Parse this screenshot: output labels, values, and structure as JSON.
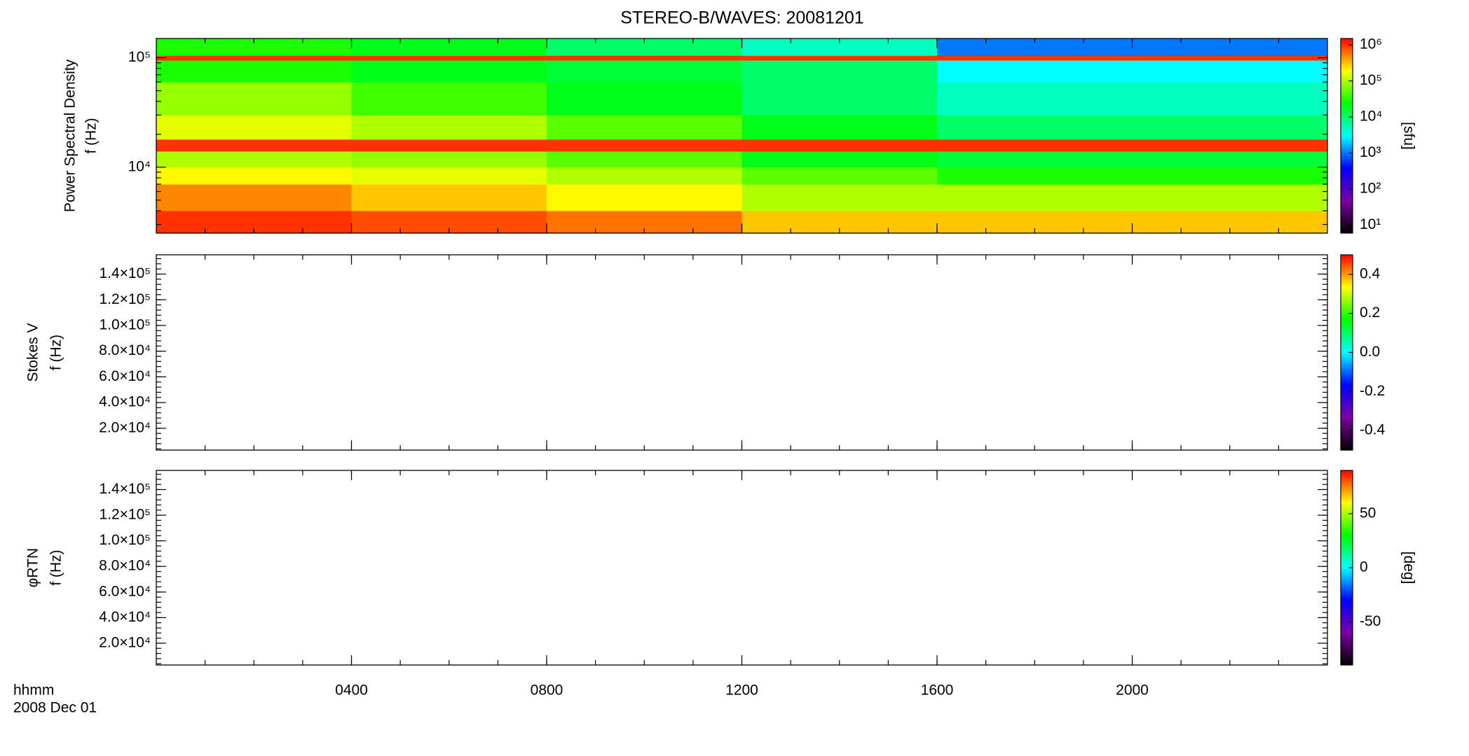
{
  "chart_data": [
    {
      "type": "heatmap",
      "title": "STEREO-B/WAVES: 20081201",
      "ylabel": [
        "Power Spectral Density",
        "f (Hz)"
      ],
      "ylog": true,
      "ylim": [
        2500,
        150000
      ],
      "yticks": [
        {
          "value": 10000,
          "label": "10⁴"
        },
        {
          "value": 100000,
          "label": "10⁵"
        }
      ],
      "x": [
        0,
        4,
        8,
        12,
        16,
        20,
        24
      ],
      "y": [
        2500,
        4000,
        7000,
        10000,
        14000,
        18000,
        30000,
        60000,
        95000,
        105000,
        150000
      ],
      "values": [
        [
          1000000,
          800000,
          600000,
          300000,
          300000,
          300000
        ],
        [
          500000,
          300000,
          200000,
          100000,
          100000,
          100000
        ],
        [
          200000,
          150000,
          100000,
          50000,
          30000,
          30000
        ],
        [
          100000,
          80000,
          50000,
          20000,
          15000,
          15000
        ],
        [
          1000000,
          1000000,
          1000000,
          1000000,
          1000000,
          1000000
        ],
        [
          150000,
          100000,
          50000,
          20000,
          10000,
          10000
        ],
        [
          80000,
          40000,
          20000,
          10000,
          5000,
          5000
        ],
        [
          30000,
          20000,
          15000,
          10000,
          3000,
          3000
        ],
        [
          1000000,
          1000000,
          1000000,
          1000000,
          1000000,
          1000000
        ],
        [
          30000,
          20000,
          10000,
          5000,
          1000,
          1000
        ]
      ],
      "colorbar": {
        "zlog": true,
        "zlim": [
          6,
          1500000
        ],
        "label": "[sfu]",
        "zticks": [
          {
            "value": 10,
            "label": "10¹"
          },
          {
            "value": 100,
            "label": "10²"
          },
          {
            "value": 1000,
            "label": "10³"
          },
          {
            "value": 10000,
            "label": "10⁴"
          },
          {
            "value": 100000,
            "label": "10⁵"
          },
          {
            "value": 1000000,
            "label": "10⁶"
          }
        ],
        "colormap": [
          "#000000",
          "#7a00a0",
          "#0000ff",
          "#00ffff",
          "#00ff00",
          "#ffff00",
          "#ff0000"
        ]
      }
    },
    {
      "type": "heatmap",
      "ylabel": [
        "Stokes V",
        "f (Hz)"
      ],
      "ylim": [
        3000,
        155000
      ],
      "yticks": [
        {
          "value": 20000,
          "label": "2.0×10⁴"
        },
        {
          "value": 40000,
          "label": "4.0×10⁴"
        },
        {
          "value": 60000,
          "label": "6.0×10⁴"
        },
        {
          "value": 80000,
          "label": "8.0×10⁴"
        },
        {
          "value": 100000,
          "label": "1.0×10⁵"
        },
        {
          "value": 120000,
          "label": "1.2×10⁵"
        },
        {
          "value": 140000,
          "label": "1.4×10⁵"
        }
      ],
      "colorbar": {
        "zlim": [
          -0.5,
          0.5
        ],
        "zticks": [
          -0.4,
          -0.2,
          {
            "value": 0,
            "label": "0.0"
          },
          0.2,
          0.4
        ],
        "colormap": [
          "#000000",
          "#7a00a0",
          "#0000ff",
          "#00ffff",
          "#00ff00",
          "#ffff00",
          "#ff0000"
        ]
      }
    },
    {
      "type": "heatmap",
      "ylabel": [
        "φRTN",
        "f (Hz)"
      ],
      "ylim": [
        3000,
        155000
      ],
      "yticks": [
        {
          "value": 20000,
          "label": "2.0×10⁴"
        },
        {
          "value": 40000,
          "label": "4.0×10⁴"
        },
        {
          "value": 60000,
          "label": "6.0×10⁴"
        },
        {
          "value": 80000,
          "label": "8.0×10⁴"
        },
        {
          "value": 100000,
          "label": "1.0×10⁵"
        },
        {
          "value": 120000,
          "label": "1.2×10⁵"
        },
        {
          "value": 140000,
          "label": "1.4×10⁵"
        }
      ],
      "xlim": [
        0,
        24
      ],
      "xticks": [
        {
          "value": 4,
          "label": "0400"
        },
        {
          "value": 8,
          "label": "0800"
        },
        {
          "value": 12,
          "label": "1200"
        },
        {
          "value": 16,
          "label": "1600"
        },
        {
          "value": 20,
          "label": "2000"
        }
      ],
      "xlabel": [
        "hhmm",
        "2008 Dec 01"
      ],
      "colorbar": {
        "zlim": [
          -90,
          90
        ],
        "zticks": [
          -50,
          0,
          50
        ],
        "label": "[deg]",
        "colormap": [
          "#000000",
          "#7a00a0",
          "#0000ff",
          "#00ffff",
          "#00ff00",
          "#ffff00",
          "#ff0000"
        ]
      }
    }
  ]
}
